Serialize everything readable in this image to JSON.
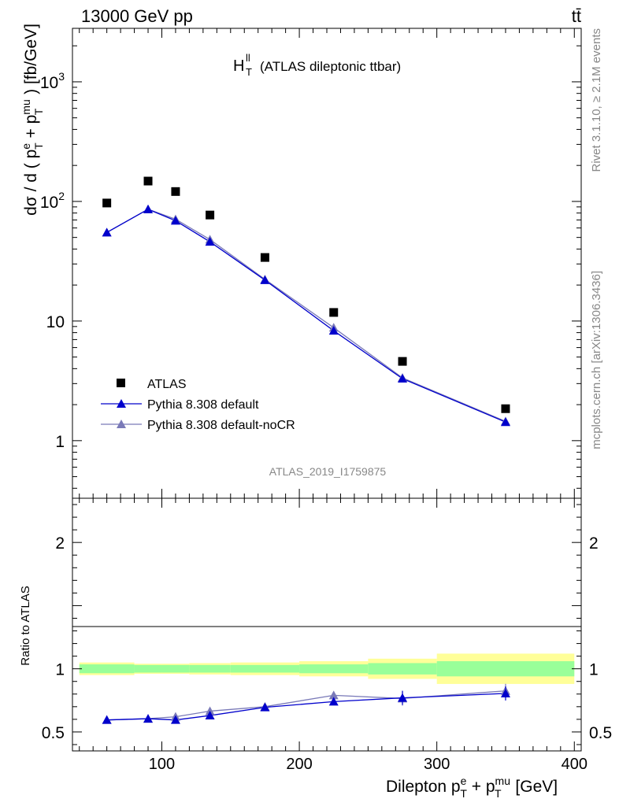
{
  "header": {
    "left": "13000 GeV pp",
    "right": "tt̄"
  },
  "side_labels": {
    "rivet": "Rivet 3.1.10, ≥ 2.1M events",
    "mcplots": "mcplots.cern.ch [arXiv:1306.3436]"
  },
  "colors": {
    "atlas": "#000000",
    "pythia_default": "#0000cc",
    "pythia_nocr": "#7a7ab8",
    "band_inner": "#99ff99",
    "band_outer": "#ffff99"
  },
  "chart_data": [
    {
      "type": "scatter",
      "title": "H",
      "title_sup": "ll",
      "title_sub": "T",
      "title_suffix": "(ATLAS dileptonic ttbar)",
      "analysis_id": "ATLAS_2019_I1759875",
      "ylabel": {
        "a": "dσ / d ( p",
        "sup1": "e",
        "sub1": "T",
        "b": " + p",
        "sup2": "mu",
        "sub2": "T",
        "c": " ) [fb/GeV]"
      },
      "yscale": "log",
      "ylim": [
        0.33,
        2800
      ],
      "xlim": [
        35,
        405
      ],
      "ytick_labels": [
        {
          "value": 1000,
          "base": "10",
          "exp": "3"
        },
        {
          "value": 100,
          "base": "10",
          "exp": "2"
        },
        {
          "value": 10,
          "base": "10",
          "exp": ""
        },
        {
          "value": 1,
          "base": "1",
          "exp": ""
        }
      ],
      "legend": {
        "placement": "lower-left",
        "entries": [
          "ATLAS",
          "Pythia 8.308 default",
          "Pythia 8.308 default-noCR"
        ]
      },
      "series": [
        {
          "name": "ATLAS",
          "marker": "square",
          "x": [
            60,
            90,
            110,
            135,
            175,
            225,
            275,
            350
          ],
          "y": [
            97,
            148,
            121,
            77,
            34,
            11.8,
            4.6,
            1.85
          ]
        },
        {
          "name": "Pythia 8.308 default",
          "marker": "triangle",
          "x": [
            60,
            90,
            110,
            135,
            175,
            225,
            275,
            350
          ],
          "y": [
            55,
            86,
            69,
            46,
            22,
            8.3,
            3.3,
            1.43
          ]
        },
        {
          "name": "Pythia 8.308 default-noCR",
          "marker": "triangle",
          "x": [
            60,
            90,
            110,
            135,
            175,
            225,
            275,
            350
          ],
          "y": [
            55,
            86,
            71,
            48,
            22.3,
            8.8,
            3.35,
            1.45
          ]
        }
      ]
    },
    {
      "type": "line",
      "ylabel": "Ratio to ATLAS",
      "ylim": [
        0.35,
        2.35
      ],
      "xlim": [
        35,
        405
      ],
      "ytick_labels": [
        {
          "value": 2,
          "label": "2"
        },
        {
          "value": 1,
          "label": "1"
        },
        {
          "value": 0.5,
          "label": "0.5"
        }
      ],
      "xtick_labels": [
        {
          "value": 100,
          "label": "100"
        },
        {
          "value": 200,
          "label": "200"
        },
        {
          "value": 300,
          "label": "300"
        },
        {
          "value": 400,
          "label": "400"
        }
      ],
      "xlabel": {
        "a": "Dilepton p",
        "sup1": "e",
        "sub1": "T",
        "b": " + p",
        "sup2": "mu",
        "sub2": "T",
        "c": " [GeV]"
      },
      "bands": {
        "edges": [
          40,
          80,
          100,
          120,
          150,
          200,
          250,
          300,
          400
        ],
        "inner": [
          0.035,
          0.03,
          0.03,
          0.03,
          0.03,
          0.035,
          0.045,
          0.06
        ],
        "outer": [
          0.05,
          0.04,
          0.04,
          0.045,
          0.05,
          0.06,
          0.08,
          0.12
        ]
      },
      "series": [
        {
          "name": "Pythia 8.308 default",
          "x": [
            60,
            90,
            110,
            135,
            175,
            225,
            275,
            350
          ],
          "y": [
            0.595,
            0.605,
            0.595,
            0.63,
            0.695,
            0.74,
            0.77,
            0.805
          ]
        },
        {
          "name": "Pythia 8.308 default-noCR",
          "x": [
            60,
            90,
            110,
            135,
            175,
            225,
            275,
            350
          ],
          "y": [
            0.595,
            0.605,
            0.62,
            0.665,
            0.7,
            0.79,
            0.765,
            0.825
          ]
        }
      ]
    }
  ]
}
